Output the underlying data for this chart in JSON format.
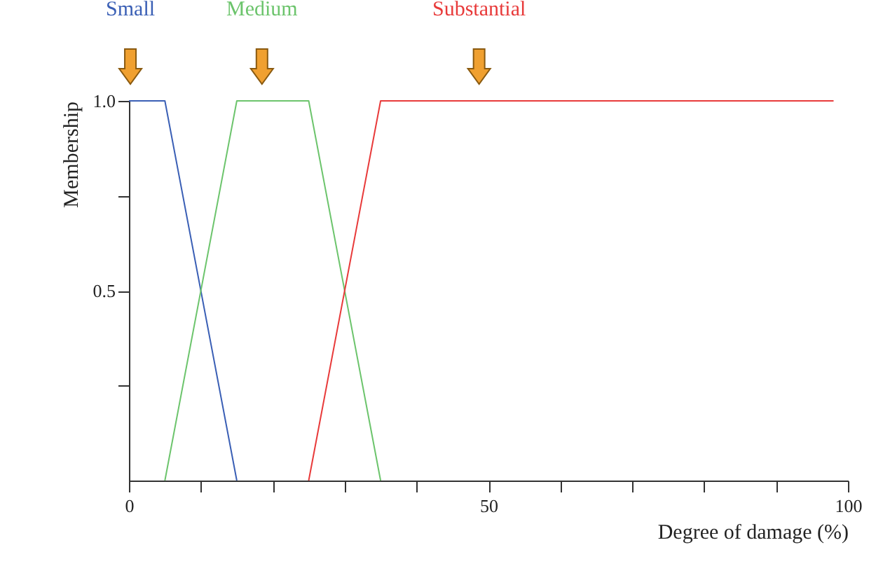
{
  "chart_data": {
    "type": "line",
    "xlabel": "Degree of damage (%)",
    "ylabel": "Membership",
    "xlim": [
      0,
      100
    ],
    "xticks": [
      0,
      {
        "value": 10,
        "label": null
      },
      {
        "value": 20,
        "label": null
      },
      {
        "value": 30,
        "label": null
      },
      {
        "value": 40,
        "label": null
      },
      50,
      {
        "value": 60,
        "label": null
      },
      {
        "value": 70,
        "label": null
      },
      {
        "value": 80,
        "label": null
      },
      {
        "value": 90,
        "label": null
      },
      100
    ],
    "ylim": [
      0,
      1
    ],
    "yticks": [
      {
        "value": 0.25,
        "label": null
      },
      0.5,
      {
        "value": 0.75,
        "label": null
      },
      {
        "value": 1,
        "label": "1.0"
      }
    ],
    "grid": false,
    "marker": "none",
    "line_style": "solid",
    "series": [
      {
        "name": "Small",
        "color": "#3a5fb5",
        "x": [
          0,
          5,
          15
        ],
        "values": [
          1,
          1,
          0
        ]
      },
      {
        "name": "Medium",
        "color": "#6cc46c",
        "x": [
          5,
          15,
          25,
          35
        ],
        "values": [
          0,
          1,
          1,
          0
        ]
      },
      {
        "name": "Substantial",
        "color": "#e83a3a",
        "x": [
          25,
          35,
          98
        ],
        "values": [
          0,
          1,
          1
        ]
      }
    ]
  }
}
